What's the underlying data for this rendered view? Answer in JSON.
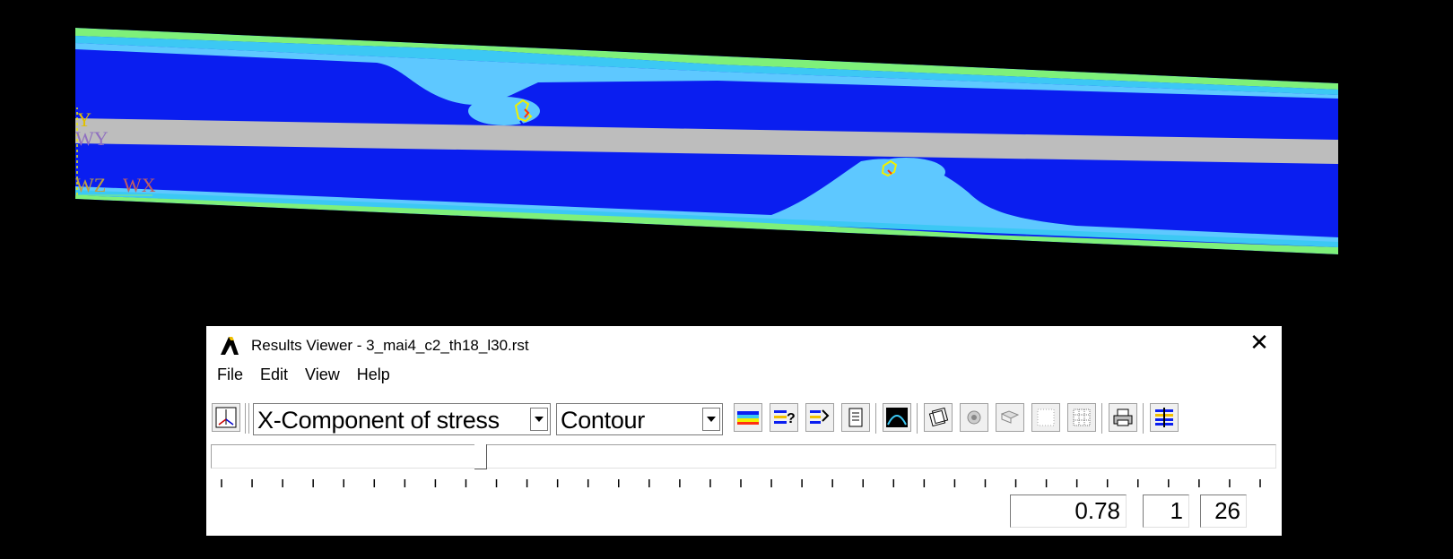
{
  "viewport": {
    "triad_labels": {
      "y": "Y",
      "wy": "WY",
      "wz": "WZ",
      "wx": "WX"
    },
    "colors": {
      "background": "#000000",
      "band_green": "#7ef07a",
      "band_cyan": "#3cc8f4",
      "band_lightblue": "#5ec8ff",
      "band_blue": "#0a1ef0",
      "band_gray": "#bdbdbd",
      "hotspot_yellow": "#f0f000",
      "hotspot_red": "#ff3010"
    }
  },
  "results_viewer": {
    "title": "Results Viewer -  3_mai4_c2_th18_l30.rst",
    "close_symbol": "✕",
    "menu": [
      {
        "label": "File"
      },
      {
        "label": "Edit"
      },
      {
        "label": "View"
      },
      {
        "label": "Help"
      }
    ],
    "toolbar": {
      "item_select": "X-Component of stress",
      "plot_type": "Contour",
      "icons": [
        "plot-results-icon",
        "contour-legend-icon",
        "query-results-icon",
        "query-results-2-icon",
        "list-results-icon",
        "graph-icon",
        "animate-icon",
        "capture-icon",
        "image-icon",
        "grid-icon",
        "dense-grid-icon",
        "print-icon",
        "layers-icon"
      ]
    },
    "slider": {
      "position_fraction": 0.25,
      "tick_count": 35
    },
    "values": {
      "time": "0.78",
      "step": "1",
      "total": "26"
    }
  }
}
